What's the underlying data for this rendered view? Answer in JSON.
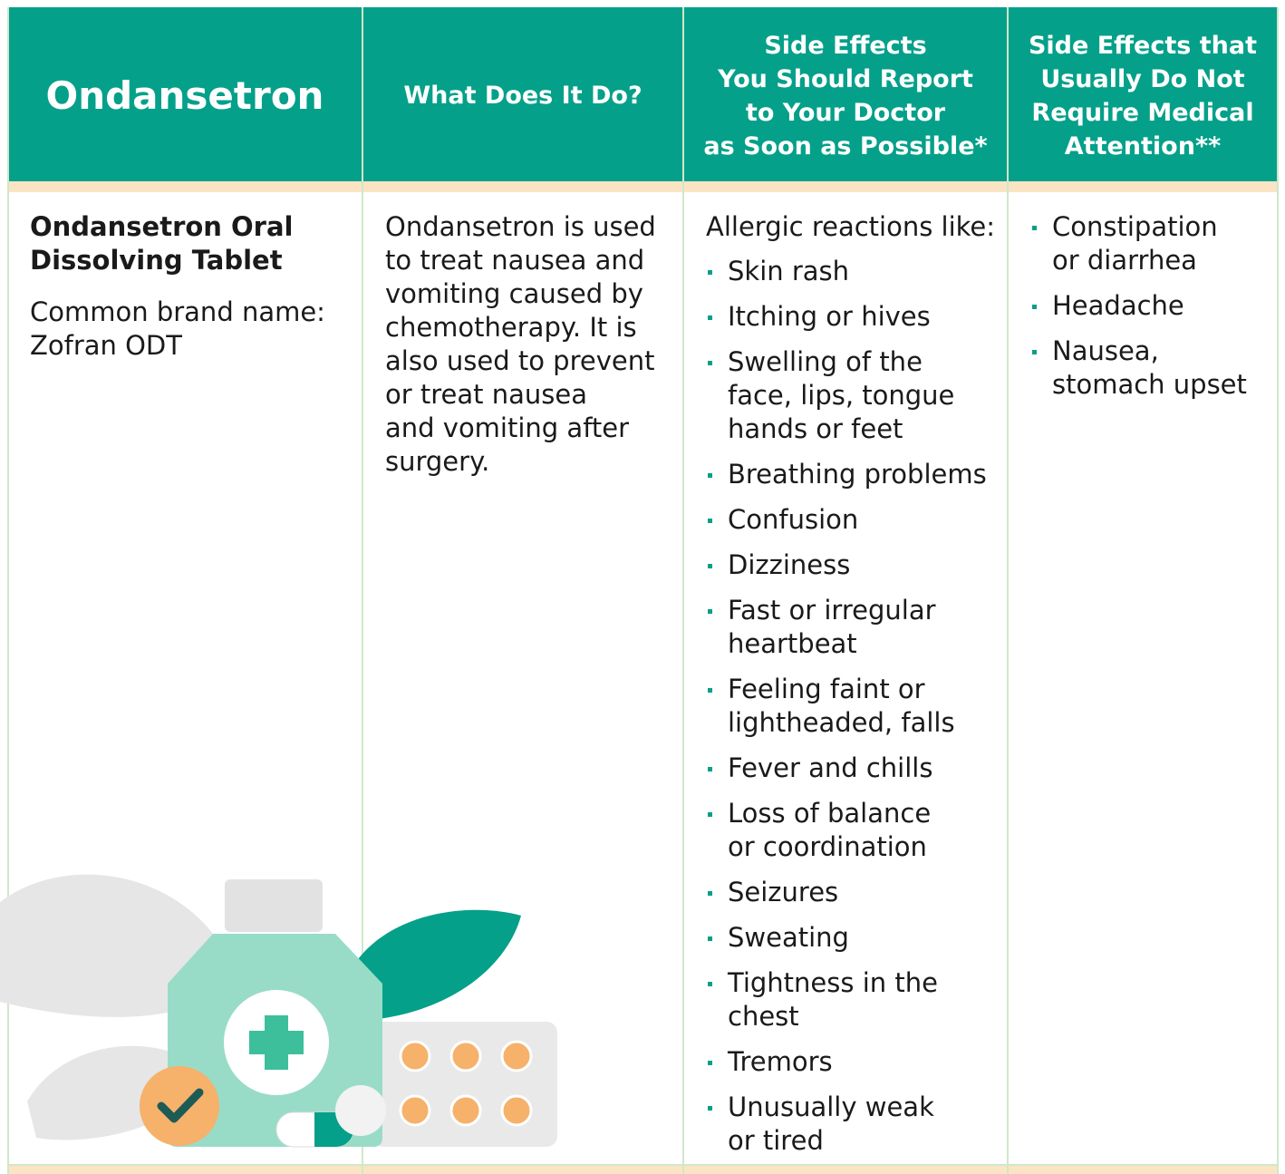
{
  "header": {
    "title": "Ondansetron",
    "columns": [
      {
        "lines": [
          "What Does It Do?"
        ]
      },
      {
        "lines": [
          "Side Effects",
          "You Should Report",
          "to Your Doctor",
          "as Soon as Possible*"
        ]
      },
      {
        "lines": [
          "Side Effects that",
          "Usually Do Not",
          "Require Medical",
          "Attention**"
        ]
      }
    ]
  },
  "row": {
    "name": {
      "lines": [
        "Ondansetron Oral",
        "Dissolving Tablet"
      ]
    },
    "brand": {
      "lines": [
        "Common brand name:",
        "Zofran ODT"
      ]
    },
    "description": {
      "lines": [
        "Ondansetron is used",
        "to treat nausea and",
        "vomiting caused by",
        "chemotherapy. It is",
        "also used to prevent",
        "or treat nausea",
        "and vomiting after",
        "surgery."
      ]
    },
    "report": {
      "intro": "Allergic reactions like:",
      "items": [
        {
          "lines": [
            "Skin rash"
          ]
        },
        {
          "lines": [
            "Itching or hives"
          ]
        },
        {
          "lines": [
            "Swelling of the",
            "face, lips, tongue",
            "hands or feet"
          ]
        },
        {
          "lines": [
            "Breathing problems"
          ]
        },
        {
          "lines": [
            "Confusion"
          ]
        },
        {
          "lines": [
            "Dizziness"
          ]
        },
        {
          "lines": [
            "Fast or irregular",
            "heartbeat"
          ]
        },
        {
          "lines": [
            "Feeling faint or",
            "lightheaded, falls"
          ]
        },
        {
          "lines": [
            "Fever and chills"
          ]
        },
        {
          "lines": [
            "Loss of balance",
            "or coordination"
          ]
        },
        {
          "lines": [
            "Seizures"
          ]
        },
        {
          "lines": [
            "Sweating"
          ]
        },
        {
          "lines": [
            "Tightness in the",
            "chest"
          ]
        },
        {
          "lines": [
            "Tremors"
          ]
        },
        {
          "lines": [
            "Unusually weak",
            "or tired"
          ]
        }
      ]
    },
    "usual": {
      "items": [
        {
          "lines": [
            "Constipation",
            "or diarrhea"
          ]
        },
        {
          "lines": [
            "Headache"
          ]
        },
        {
          "lines": [
            "Nausea,",
            "stomach upset"
          ]
        }
      ]
    }
  }
}
